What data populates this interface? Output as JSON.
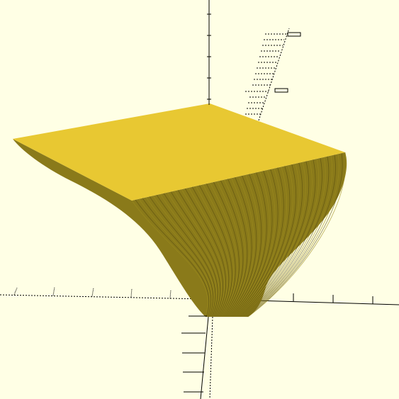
{
  "viewport": {
    "name": "3d-preview-viewport",
    "background_color": "#ffffe5"
  },
  "model": {
    "name": "swept-wedge-solid",
    "top_face_color": "#e8c832",
    "side_face_color": "#8a7a1a",
    "edge_color": "#5a4e10",
    "shade_lines": 60
  },
  "axes": {
    "color": "#000000",
    "x_axis_dashed": true,
    "y_axis_dashed": true,
    "z_axis_dashed": false
  }
}
